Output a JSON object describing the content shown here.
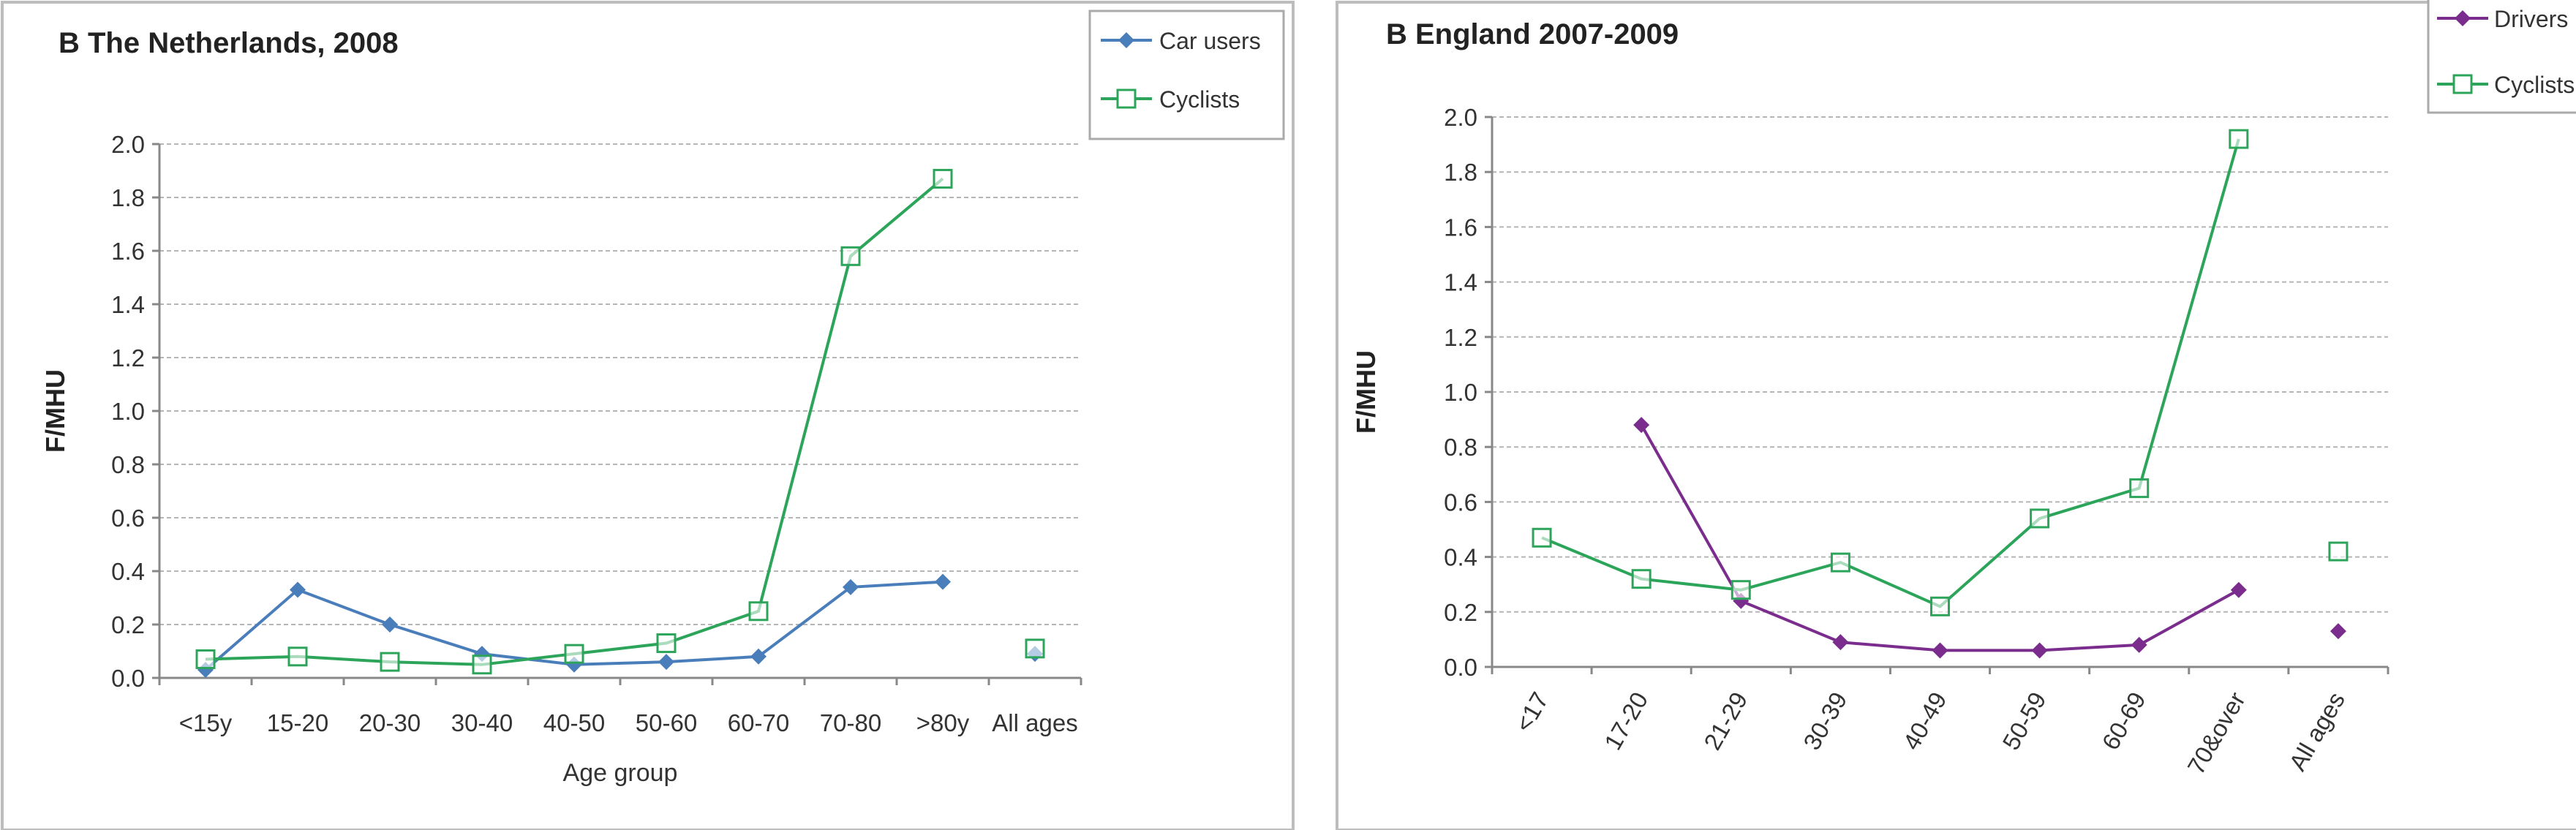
{
  "chart_data": [
    {
      "type": "line",
      "title": "B The Netherlands, 2008",
      "xlabel": "Age group",
      "ylabel": "F/MHU",
      "ylim": [
        0,
        2.0
      ],
      "yticks": [
        "0.0",
        "0.2",
        "0.4",
        "0.6",
        "0.8",
        "1.0",
        "1.2",
        "1.4",
        "1.6",
        "1.8",
        "2.0"
      ],
      "categories": [
        "<15y",
        "15-20",
        "20-30",
        "30-40",
        "40-50",
        "50-60",
        "60-70",
        "70-80",
        ">80y",
        "All ages"
      ],
      "grid": true,
      "legend_position": "top-right",
      "series": [
        {
          "name": "Car users",
          "color": "#4a7ebb",
          "marker": "diamond",
          "values": [
            0.03,
            0.33,
            0.2,
            0.09,
            0.05,
            0.06,
            0.08,
            0.34,
            0.36,
            0.09
          ],
          "connected_upto": 8
        },
        {
          "name": "Cyclists",
          "color": "#2ca55a",
          "marker": "square-open",
          "values": [
            0.07,
            0.08,
            0.06,
            0.05,
            0.09,
            0.13,
            0.25,
            1.58,
            1.87,
            0.11
          ],
          "connected_upto": 8
        }
      ]
    },
    {
      "type": "line",
      "title": "B England 2007-2009",
      "xlabel": "",
      "ylabel": "F/MHU",
      "ylim": [
        0,
        2.0
      ],
      "yticks": [
        "0.0",
        "0.2",
        "0.4",
        "0.6",
        "0.8",
        "1.0",
        "1.2",
        "1.4",
        "1.6",
        "1.8",
        "2.0"
      ],
      "categories": [
        "<17",
        "17-20",
        "21-29",
        "30-39",
        "40-49",
        "50-59",
        "60-69",
        "70&over",
        "All ages"
      ],
      "grid": true,
      "legend_position": "top-right",
      "series": [
        {
          "name": "Drivers",
          "color": "#7b2d8e",
          "marker": "diamond",
          "values": [
            null,
            0.88,
            0.24,
            0.09,
            0.06,
            0.06,
            0.08,
            0.28,
            0.13
          ],
          "connected_upto": 7
        },
        {
          "name": "Cyclists",
          "color": "#2ca55a",
          "marker": "square-open",
          "values": [
            0.47,
            0.32,
            0.28,
            0.38,
            0.22,
            0.54,
            0.65,
            1.92,
            0.42
          ],
          "connected_upto": 7
        }
      ]
    }
  ]
}
